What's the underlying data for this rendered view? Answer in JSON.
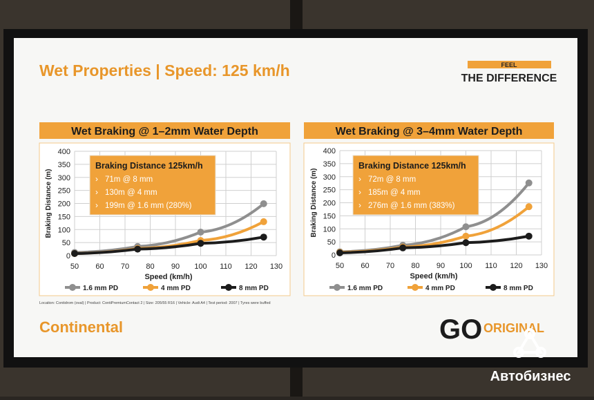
{
  "page": {
    "title": "Wet Properties | Speed: 125 km/h",
    "feel": "FEEL",
    "difference": "THE DIFFERENCE",
    "footnote": "Location: Contidrom (oval) | Product: ContiPremiumContact 2 | Size: 205/55 R16 | Vehicle: Audi A4 | Test period: 2007 | Tyres were buffed",
    "brand": "Continental",
    "go": "GO",
    "original": "ORIGINAL",
    "watermark": "Автобизнес"
  },
  "chart_data": [
    {
      "type": "line",
      "title": "Wet Braking @ 1–2mm Water Depth",
      "x_label": "Speed (km/h)",
      "y_label": "Braking Distance (m)",
      "x": [
        50,
        75,
        100,
        125
      ],
      "xlim": [
        50,
        130
      ],
      "xticks": [
        50,
        60,
        70,
        80,
        90,
        100,
        110,
        120,
        130
      ],
      "ylim": [
        0,
        400
      ],
      "yticks": [
        0,
        50,
        100,
        150,
        200,
        250,
        300,
        350,
        400
      ],
      "grid": true,
      "annotation": {
        "title": "Braking Distance 125km/h",
        "items": [
          "71m   @ 8 mm",
          "130m @ 4 mm",
          "199m @ 1.6 mm (280%)"
        ]
      },
      "series": [
        {
          "name": "1.6 mm PD",
          "color": "#8f8f8f",
          "values": [
            12,
            35,
            90,
            199
          ]
        },
        {
          "name": "4 mm PD",
          "color": "#f0a23a",
          "values": [
            8,
            27,
            58,
            130
          ]
        },
        {
          "name": "8 mm PD",
          "color": "#1c1c1c",
          "values": [
            8,
            25,
            47,
            71
          ]
        }
      ]
    },
    {
      "type": "line",
      "title": "Wet Braking @ 3–4mm Water Depth",
      "x_label": "Speed (km/h)",
      "y_label": "Braking Distance (m)",
      "x": [
        50,
        75,
        100,
        125
      ],
      "xlim": [
        50,
        130
      ],
      "xticks": [
        50,
        60,
        70,
        80,
        90,
        100,
        110,
        120,
        130
      ],
      "ylim": [
        0,
        400
      ],
      "yticks": [
        0,
        50,
        100,
        150,
        200,
        250,
        300,
        350,
        400
      ],
      "grid": true,
      "annotation": {
        "title": "Braking Distance 125km/h",
        "items": [
          "72m   @ 8 mm",
          "185m @ 4 mm",
          "276m @ 1.6 mm (383%)"
        ]
      },
      "series": [
        {
          "name": "1.6 mm PD",
          "color": "#8f8f8f",
          "values": [
            12,
            37,
            108,
            276
          ]
        },
        {
          "name": "4 mm PD",
          "color": "#f0a23a",
          "values": [
            10,
            30,
            72,
            185
          ]
        },
        {
          "name": "8 mm PD",
          "color": "#1c1c1c",
          "values": [
            8,
            27,
            47,
            72
          ]
        }
      ]
    }
  ]
}
